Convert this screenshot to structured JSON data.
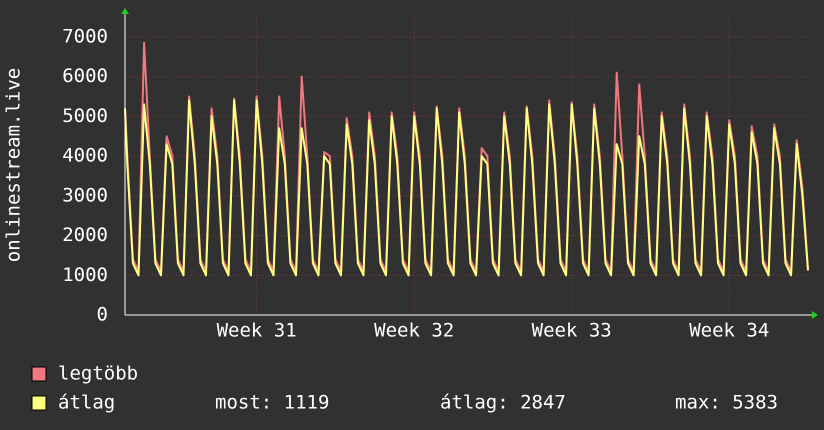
{
  "chart_data": {
    "type": "line",
    "y_label": "onlinestream.live",
    "x": [
      0,
      0.1,
      0.35,
      0.6,
      0.85,
      1.1,
      1.35,
      1.6,
      1.85,
      2.1,
      2.35,
      2.6,
      2.85,
      3.1,
      3.35,
      3.6,
      3.85,
      4.1,
      4.35,
      4.6,
      4.85,
      5.1,
      5.35,
      5.6,
      5.85,
      6.1,
      6.35,
      6.6,
      6.85,
      7.1,
      7.35,
      7.6,
      7.85,
      8.1,
      8.35,
      8.6,
      8.85,
      9.1,
      9.35,
      9.6,
      9.85,
      10.1,
      10.35,
      10.6,
      10.85,
      11.1,
      11.35,
      11.6,
      11.85,
      12.1,
      12.35,
      12.6,
      12.85,
      13.1,
      13.35,
      13.6,
      13.85,
      14.1,
      14.35,
      14.6,
      14.85,
      15.1,
      15.35,
      15.6,
      15.85,
      16.1,
      16.35,
      16.6,
      16.85,
      17.1,
      17.35,
      17.6,
      17.85,
      18.1,
      18.35,
      18.6,
      18.85,
      19.1,
      19.35,
      19.6,
      19.85,
      20.1,
      20.35,
      20.6,
      20.85,
      21.1,
      21.35,
      21.6,
      21.85,
      22.1,
      22.35,
      22.6,
      22.85,
      23.1,
      23.35,
      23.6,
      23.85,
      24.1,
      24.35,
      24.6,
      24.85,
      25.1,
      25.35,
      25.6,
      25.85,
      26.1,
      26.35,
      26.6,
      26.85,
      27.1,
      27.35,
      27.6,
      27.85,
      28.1,
      28.35,
      28.6,
      28.85,
      29.1,
      29.35,
      29.6,
      29.85,
      30.1,
      30.35
    ],
    "series": [
      {
        "name": "legtöbb",
        "color": "#f07880",
        "values": [
          5200,
          4000,
          1400,
          1100,
          6850,
          4000,
          1400,
          1100,
          4500,
          4000,
          1400,
          1100,
          5500,
          4000,
          1400,
          1100,
          5200,
          4000,
          1400,
          1100,
          5450,
          4000,
          1400,
          1100,
          5500,
          4000,
          1400,
          1100,
          5500,
          4000,
          1400,
          1100,
          6000,
          4000,
          1400,
          1100,
          4100,
          4000,
          1400,
          1100,
          4950,
          4000,
          1400,
          1100,
          5100,
          4000,
          1400,
          1100,
          5100,
          4000,
          1400,
          1100,
          5100,
          4000,
          1400,
          1100,
          5250,
          4000,
          1400,
          1100,
          5200,
          4000,
          1400,
          1100,
          4200,
          4000,
          1400,
          1100,
          5100,
          4000,
          1400,
          1100,
          5250,
          4000,
          1400,
          1100,
          5400,
          4000,
          1400,
          1100,
          5350,
          4000,
          1400,
          1100,
          5300,
          4000,
          1400,
          1100,
          6100,
          4000,
          1400,
          1100,
          5800,
          4000,
          1400,
          1100,
          5100,
          4000,
          1400,
          1100,
          5300,
          4000,
          1400,
          1100,
          5100,
          4000,
          1400,
          1100,
          4900,
          4000,
          1400,
          1100,
          4750,
          4000,
          1400,
          1100,
          4800,
          4000,
          1400,
          1100,
          4400,
          3200,
          1150
        ]
      },
      {
        "name": "átlag",
        "color": "#ffff80",
        "values": [
          5200,
          3800,
          1300,
          1000,
          5300,
          3800,
          1300,
          1000,
          4300,
          3800,
          1300,
          1000,
          5400,
          3800,
          1300,
          1000,
          5000,
          3800,
          1300,
          1000,
          5400,
          3800,
          1300,
          1000,
          5400,
          3800,
          1300,
          1000,
          4700,
          3800,
          1300,
          1000,
          4700,
          3800,
          1300,
          1000,
          4000,
          3800,
          1300,
          1000,
          4800,
          3800,
          1300,
          1000,
          4900,
          3800,
          1300,
          1000,
          5000,
          3800,
          1300,
          1000,
          5000,
          3800,
          1300,
          1000,
          5200,
          3800,
          1300,
          1000,
          5100,
          3800,
          1300,
          1000,
          4000,
          3800,
          1300,
          1000,
          5000,
          3800,
          1300,
          1000,
          5200,
          3800,
          1300,
          1000,
          5300,
          3800,
          1300,
          1000,
          5300,
          3800,
          1300,
          1000,
          5200,
          3800,
          1300,
          1000,
          4300,
          3800,
          1300,
          1000,
          4500,
          3800,
          1300,
          1000,
          5000,
          3800,
          1300,
          1000,
          5200,
          3800,
          1300,
          1000,
          5000,
          3800,
          1300,
          1000,
          4800,
          3800,
          1300,
          1000,
          4600,
          3800,
          1300,
          1000,
          4700,
          3800,
          1300,
          1000,
          4300,
          3000,
          1119
        ]
      }
    ],
    "xlim": [
      0,
      30.35
    ],
    "xticks": [
      {
        "value": 5.85,
        "label": "Week 31"
      },
      {
        "value": 12.85,
        "label": "Week 32"
      },
      {
        "value": 19.85,
        "label": "Week 33"
      },
      {
        "value": 26.85,
        "label": "Week 34"
      }
    ],
    "ylim": [
      0,
      7500
    ],
    "yticks": [
      0,
      1000,
      2000,
      3000,
      4000,
      5000,
      6000,
      7000
    ],
    "grid": true,
    "stats": [
      "most: 1119",
      "átlag: 2847",
      "max: 5383"
    ]
  }
}
